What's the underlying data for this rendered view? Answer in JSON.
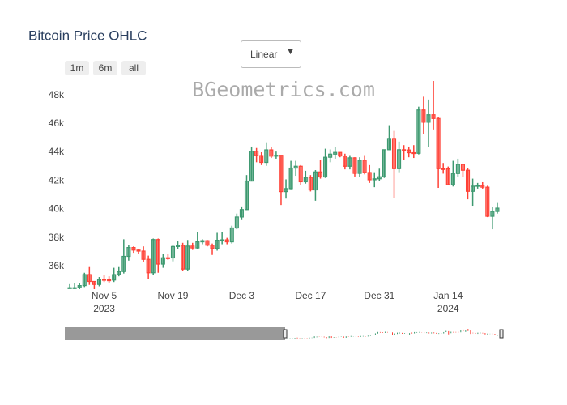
{
  "chart_data": {
    "type": "candlestick",
    "title": "Bitcoin Price OHLC",
    "watermark": "BGeometrics.com",
    "buttons": [
      "1m",
      "6m",
      "all"
    ],
    "scale_menu": "Linear",
    "increasing_color": "#3D9970",
    "decreasing_color": "#FF4136",
    "grid": false,
    "xlim": [
      "2023-10-28",
      "2024-01-25"
    ],
    "ylim": [
      34400,
      49000
    ],
    "yticks": [
      {
        "value": 36000,
        "label": "36k"
      },
      {
        "value": 38000,
        "label": "38k"
      },
      {
        "value": 40000,
        "label": "40k"
      },
      {
        "value": 42000,
        "label": "42k"
      },
      {
        "value": 44000,
        "label": "44k"
      },
      {
        "value": 46000,
        "label": "46k"
      },
      {
        "value": 48000,
        "label": "48k"
      }
    ],
    "xticks": [
      {
        "value": "2023-11-05",
        "label": "Nov 5",
        "year": "2023"
      },
      {
        "value": "2023-11-19",
        "label": "Nov 19"
      },
      {
        "value": "2023-12-03",
        "label": "Dec 3"
      },
      {
        "value": "2023-12-17",
        "label": "Dec 17"
      },
      {
        "value": "2023-12-31",
        "label": "Dec 31"
      },
      {
        "value": "2024-01-14",
        "label": "Jan 14",
        "year": "2024"
      }
    ],
    "x": [
      "2023-10-29",
      "2023-10-30",
      "2023-10-31",
      "2023-11-01",
      "2023-11-02",
      "2023-11-03",
      "2023-11-04",
      "2023-11-05",
      "2023-11-06",
      "2023-11-07",
      "2023-11-08",
      "2023-11-09",
      "2023-11-10",
      "2023-11-11",
      "2023-11-12",
      "2023-11-13",
      "2023-11-14",
      "2023-11-15",
      "2023-11-16",
      "2023-11-17",
      "2023-11-18",
      "2023-11-19",
      "2023-11-20",
      "2023-11-21",
      "2023-11-22",
      "2023-11-23",
      "2023-11-24",
      "2023-11-25",
      "2023-11-26",
      "2023-11-27",
      "2023-11-28",
      "2023-11-29",
      "2023-11-30",
      "2023-12-01",
      "2023-12-02",
      "2023-12-03",
      "2023-12-04",
      "2023-12-05",
      "2023-12-06",
      "2023-12-07",
      "2023-12-08",
      "2023-12-09",
      "2023-12-10",
      "2023-12-11",
      "2023-12-12",
      "2023-12-13",
      "2023-12-14",
      "2023-12-15",
      "2023-12-16",
      "2023-12-17",
      "2023-12-18",
      "2023-12-19",
      "2023-12-20",
      "2023-12-21",
      "2023-12-22",
      "2023-12-23",
      "2023-12-24",
      "2023-12-25",
      "2023-12-26",
      "2023-12-27",
      "2023-12-28",
      "2023-12-29",
      "2023-12-30",
      "2023-12-31",
      "2024-01-01",
      "2024-01-02",
      "2024-01-03",
      "2024-01-04",
      "2024-01-05",
      "2024-01-06",
      "2024-01-07",
      "2024-01-08",
      "2024-01-09",
      "2024-01-10",
      "2024-01-11",
      "2024-01-12",
      "2024-01-13",
      "2024-01-14",
      "2024-01-15",
      "2024-01-16",
      "2024-01-17",
      "2024-01-18",
      "2024-01-19",
      "2024-01-20",
      "2024-01-21",
      "2024-01-22",
      "2024-01-23",
      "2024-01-24"
    ],
    "open": [
      34150,
      34500,
      34500,
      34650,
      35420,
      34940,
      34730,
      35080,
      35050,
      35040,
      35420,
      35640,
      36700,
      37320,
      37140,
      37070,
      36490,
      35550,
      37880,
      36160,
      36600,
      36590,
      37390,
      37480,
      35810,
      37420,
      37290,
      37720,
      37800,
      37480,
      37250,
      37830,
      37860,
      37720,
      38690,
      39460,
      39980,
      41980,
      44080,
      43770,
      43290,
      44170,
      43730,
      43790,
      41240,
      41450,
      42890,
      43020,
      41930,
      42240,
      41360,
      42620,
      42270,
      43650,
      43870,
      43990,
      43740,
      43020,
      43610,
      42520,
      43440,
      42580,
      42070,
      42140,
      42280,
      44180,
      44970,
      42850,
      44180,
      44160,
      43970,
      43930,
      46970,
      46110,
      46630,
      46370,
      42850,
      42840,
      41730,
      42510,
      43150,
      42740,
      41260,
      41620,
      41670,
      41550,
      39510,
      39850
    ],
    "high": [
      34750,
      34850,
      34850,
      35550,
      35950,
      34950,
      35250,
      35400,
      35300,
      35900,
      35950,
      37900,
      37500,
      37400,
      37230,
      37400,
      36750,
      37950,
      37950,
      36850,
      36850,
      37500,
      37750,
      37650,
      37850,
      37650,
      38400,
      37900,
      37850,
      37600,
      38350,
      38400,
      38000,
      38850,
      39700,
      40200,
      42400,
      44400,
      44300,
      44000,
      44700,
      44350,
      44050,
      43800,
      42100,
      43400,
      43400,
      43100,
      42700,
      42400,
      42750,
      43450,
      44250,
      44200,
      44350,
      44000,
      43900,
      43800,
      43650,
      43650,
      43800,
      43100,
      42600,
      42850,
      44200,
      45900,
      45500,
      44750,
      44500,
      44400,
      44500,
      47200,
      47900,
      47700,
      49000,
      46500,
      43250,
      43000,
      43400,
      43550,
      43200,
      42900,
      42150,
      41850,
      41900,
      41650,
      40150,
      40500
    ],
    "low": [
      33900,
      34100,
      34200,
      34550,
      34700,
      34350,
      34600,
      34900,
      34800,
      34900,
      35300,
      35500,
      36400,
      36950,
      36850,
      36300,
      35100,
      35400,
      35550,
      35900,
      36450,
      36350,
      37200,
      35650,
      35700,
      37150,
      37200,
      37550,
      37400,
      36800,
      37100,
      37550,
      37550,
      37600,
      38600,
      39300,
      39950,
      41950,
      43300,
      43100,
      43050,
      43600,
      43550,
      40300,
      40750,
      41400,
      42350,
      41700,
      41800,
      41250,
      40600,
      42150,
      42200,
      43300,
      43550,
      43650,
      42800,
      42800,
      42300,
      42250,
      42450,
      41850,
      41550,
      42000,
      42200,
      44150,
      40800,
      42600,
      43450,
      43650,
      43600,
      43850,
      45250,
      44350,
      45600,
      41500,
      42500,
      41700,
      41600,
      42300,
      42250,
      40700,
      40250,
      41450,
      41450,
      39450,
      38600,
      39700
    ],
    "close": [
      34500,
      34500,
      34650,
      35420,
      34940,
      34730,
      35080,
      35050,
      35040,
      35420,
      35640,
      36700,
      37320,
      37140,
      37070,
      36490,
      35550,
      37880,
      36160,
      36600,
      36590,
      37390,
      37480,
      35810,
      37420,
      37290,
      37720,
      37800,
      37480,
      37250,
      37830,
      37860,
      37720,
      38690,
      39460,
      39980,
      41980,
      44080,
      43770,
      43290,
      44170,
      43730,
      43790,
      41240,
      41450,
      42890,
      43020,
      41930,
      42240,
      41360,
      42620,
      42270,
      43650,
      43870,
      43990,
      43740,
      43020,
      43610,
      42520,
      43440,
      42580,
      42070,
      42140,
      42280,
      44180,
      44970,
      42850,
      44180,
      44160,
      43970,
      43930,
      46970,
      46110,
      46630,
      46370,
      42850,
      42840,
      41730,
      42510,
      43150,
      42740,
      41260,
      41620,
      41670,
      41550,
      39510,
      39850,
      40080
    ]
  }
}
